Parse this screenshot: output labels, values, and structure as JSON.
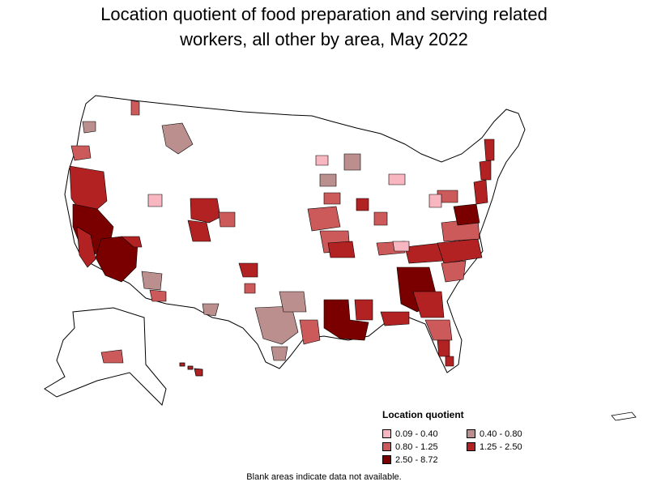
{
  "title": {
    "line1": "Location quotient of food preparation and serving related",
    "line2": "workers, all other by area, May 2022"
  },
  "legend": {
    "title": "Location quotient",
    "items": [
      {
        "label": "0.09 - 0.40",
        "color": "#f7b6c0"
      },
      {
        "label": "0.40 - 0.80",
        "color": "#bc8f8f"
      },
      {
        "label": "0.80 - 1.25",
        "color": "#cd5a5a"
      },
      {
        "label": "1.25 - 2.50",
        "color": "#b22222"
      },
      {
        "label": "2.50 - 8.72",
        "color": "#7a0000"
      }
    ]
  },
  "footnote": "Blank areas indicate data not available.",
  "colors": {
    "none": "#ffffff",
    "outline": "#000000"
  }
}
